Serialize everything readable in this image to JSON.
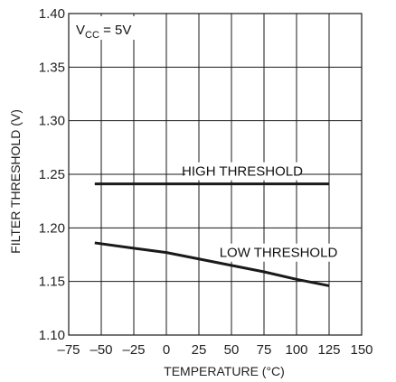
{
  "chart_data": {
    "type": "line",
    "title": "",
    "xlabel": "TEMPERATURE (°C)",
    "ylabel": "FILTER THRESHOLD (V)",
    "xlim": [
      -75,
      150
    ],
    "ylim": [
      1.1,
      1.4
    ],
    "x_ticks": [
      -75,
      -50,
      -25,
      0,
      25,
      50,
      75,
      100,
      125,
      150
    ],
    "x_tick_labels": [
      "–75",
      "–50",
      "–25",
      "0",
      "25",
      "50",
      "75",
      "100",
      "125",
      "150"
    ],
    "y_ticks": [
      1.1,
      1.15,
      1.2,
      1.25,
      1.3,
      1.35,
      1.4
    ],
    "y_tick_labels": [
      "1.10",
      "1.15",
      "1.20",
      "1.25",
      "1.30",
      "1.35",
      "1.40"
    ],
    "grid": true,
    "annotation": {
      "main": "V",
      "sub": "CC",
      "rest": " = 5V"
    },
    "series": [
      {
        "name": "HIGH THRESHOLD",
        "x": [
          -55,
          125
        ],
        "y": [
          1.241,
          1.241
        ]
      },
      {
        "name": "LOW THRESHOLD",
        "x": [
          -55,
          -25,
          0,
          25,
          50,
          75,
          100,
          125
        ],
        "y": [
          1.186,
          1.181,
          1.177,
          1.171,
          1.165,
          1.159,
          1.152,
          1.146
        ]
      }
    ],
    "colors": {
      "line": "#1a1a1a",
      "grid": "#1a1a1a",
      "background": "#ffffff"
    }
  }
}
